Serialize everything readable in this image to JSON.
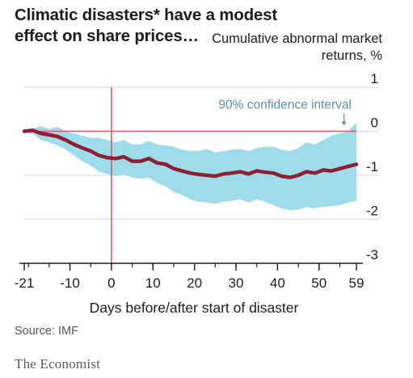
{
  "title": "Climatic disasters* have a modest effect on share prices…",
  "source": "Source: IMF",
  "brand": "The Economist",
  "chart_data": {
    "type": "line",
    "title": "Climatic disasters* have a modest effect on share prices…",
    "ylabel": "Cumulative abnormal market returns, %",
    "xlabel": "Days before/after start of disaster",
    "xlim": [
      -21,
      59
    ],
    "ylim": [
      -3,
      1
    ],
    "xticks": [
      -21,
      -10,
      0,
      10,
      20,
      30,
      40,
      50,
      59
    ],
    "yticks": [
      1,
      0,
      -1,
      -2,
      -3
    ],
    "grid": "horizontal",
    "reference_lines": {
      "x": 0,
      "y": 0
    },
    "annotation": "90% confidence interval",
    "series": [
      {
        "x": [
          -21,
          -19,
          -17,
          -15,
          -13,
          -11,
          -9,
          -7,
          -5,
          -3,
          -1,
          1,
          3,
          5,
          7,
          9,
          11,
          13,
          15,
          17,
          19,
          21,
          23,
          25,
          27,
          29,
          31,
          33,
          35,
          37,
          39,
          41,
          43,
          45,
          47,
          49,
          51,
          53,
          55,
          57,
          59
        ],
        "values": [
          0,
          0.02,
          -0.05,
          -0.08,
          -0.12,
          -0.2,
          -0.3,
          -0.38,
          -0.45,
          -0.55,
          -0.6,
          -0.62,
          -0.58,
          -0.68,
          -0.68,
          -0.62,
          -0.72,
          -0.75,
          -0.85,
          -0.9,
          -0.95,
          -0.98,
          -1.0,
          -1.02,
          -0.97,
          -0.95,
          -0.92,
          -0.97,
          -0.9,
          -0.93,
          -0.95,
          -1.02,
          -1.05,
          -1.0,
          -0.92,
          -0.95,
          -0.88,
          -0.9,
          -0.85,
          -0.8,
          -0.75
        ]
      }
    ],
    "confidence_band": {
      "x": [
        -21,
        -19,
        -17,
        -15,
        -13,
        -11,
        -9,
        -7,
        -5,
        -3,
        -1,
        1,
        3,
        5,
        7,
        9,
        11,
        13,
        15,
        17,
        19,
        21,
        23,
        25,
        27,
        29,
        31,
        33,
        35,
        37,
        39,
        41,
        43,
        45,
        47,
        49,
        51,
        53,
        55,
        57,
        59
      ],
      "upper": [
        0,
        0.05,
        0.12,
        0.05,
        0.1,
        0,
        -0.05,
        -0.1,
        -0.15,
        -0.15,
        -0.2,
        -0.25,
        -0.2,
        -0.3,
        -0.3,
        -0.22,
        -0.3,
        -0.32,
        -0.35,
        -0.42,
        -0.45,
        -0.45,
        -0.4,
        -0.48,
        -0.45,
        -0.42,
        -0.4,
        -0.45,
        -0.38,
        -0.35,
        -0.35,
        -0.42,
        -0.45,
        -0.38,
        -0.25,
        -0.3,
        -0.2,
        -0.1,
        -0.05,
        0.0,
        0.2
      ],
      "lower": [
        -0.02,
        -0.05,
        -0.2,
        -0.25,
        -0.32,
        -0.42,
        -0.55,
        -0.68,
        -0.78,
        -0.92,
        -0.97,
        -1.02,
        -0.98,
        -1.05,
        -1.08,
        -1.05,
        -1.18,
        -1.25,
        -1.38,
        -1.45,
        -1.55,
        -1.6,
        -1.62,
        -1.65,
        -1.6,
        -1.58,
        -1.55,
        -1.62,
        -1.55,
        -1.6,
        -1.68,
        -1.75,
        -1.8,
        -1.78,
        -1.72,
        -1.75,
        -1.72,
        -1.7,
        -1.68,
        -1.62,
        -1.58
      ]
    }
  }
}
